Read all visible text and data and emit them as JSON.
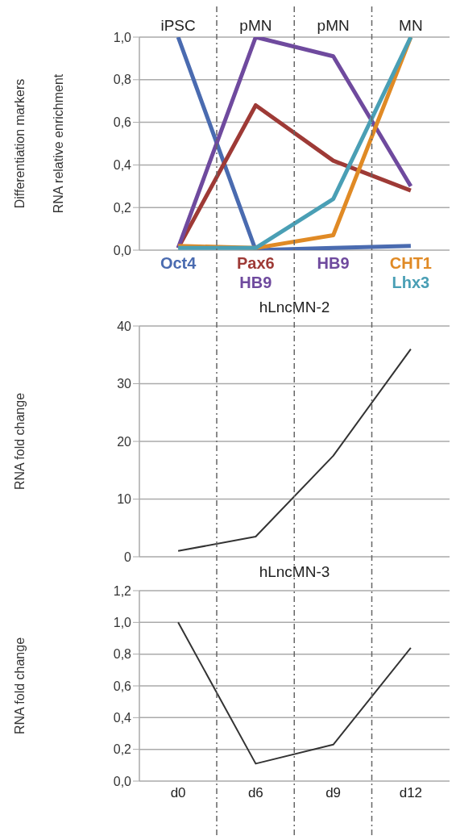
{
  "chart_data": [
    {
      "type": "line",
      "ylabel": "Differentiation markers\nRNA relative enrichment",
      "categories": [
        "iPSC",
        "pMN",
        "pMN",
        "MN"
      ],
      "ylim": [
        0,
        1
      ],
      "yticks": [
        {
          "value": 0,
          "label": "0,0"
        },
        {
          "value": 0.2,
          "label": "0,2"
        },
        {
          "value": 0.4,
          "label": "0,4"
        },
        {
          "value": 0.6,
          "label": "0,6"
        },
        {
          "value": 0.8,
          "label": "0,8"
        },
        {
          "value": 1,
          "label": "1,0"
        }
      ],
      "grid": "y",
      "legend": false,
      "series": [
        {
          "name": "Oct4",
          "color": "#4a6bb0",
          "values": [
            1.0,
            0.0,
            0.01,
            0.02
          ]
        },
        {
          "name": "Pax6",
          "color": "#9e3a36",
          "values": [
            0.01,
            0.68,
            0.42,
            0.28
          ]
        },
        {
          "name": "HB9",
          "color": "#6f4a9e",
          "values": [
            0.01,
            1.0,
            0.91,
            0.3
          ]
        },
        {
          "name": "CHT1",
          "color": "#e08a25",
          "values": [
            0.02,
            0.01,
            0.07,
            1.0
          ]
        },
        {
          "name": "Lhx3",
          "color": "#4a9fb5",
          "values": [
            0.01,
            0.01,
            0.24,
            1.0
          ]
        }
      ],
      "annotations": [
        "HB9"
      ]
    },
    {
      "type": "line",
      "title": "hLncMN-2",
      "ylabel": "RNA fold change",
      "categories": [
        null,
        null,
        null,
        null
      ],
      "ylim": [
        0,
        40
      ],
      "yticks": [
        0,
        10,
        20,
        30,
        40
      ],
      "grid": "y",
      "tick_labels": "y",
      "series": [
        {
          "color": "#333333",
          "values": [
            1,
            3.5,
            17.5,
            36
          ]
        }
      ]
    },
    {
      "type": "line",
      "title": "hLncMN-3",
      "ylabel": "RNA fold change",
      "categories": [
        "d0",
        "d6",
        "d9",
        "d12"
      ],
      "ylim": [
        0,
        1.2
      ],
      "yticks": [
        {
          "value": 0,
          "label": "0,0"
        },
        {
          "value": 0.2,
          "label": "0,2"
        },
        {
          "value": 0.4,
          "label": "0,4"
        },
        {
          "value": 0.6,
          "label": "0,6"
        },
        {
          "value": 0.8,
          "label": "0,8"
        },
        {
          "value": 1,
          "label": "1,0"
        },
        {
          "value": 1.2,
          "label": "1,2"
        }
      ],
      "grid": "y",
      "series": [
        {
          "color": "#333333",
          "values": [
            1.0,
            0.11,
            0.23,
            0.84
          ]
        }
      ]
    }
  ]
}
